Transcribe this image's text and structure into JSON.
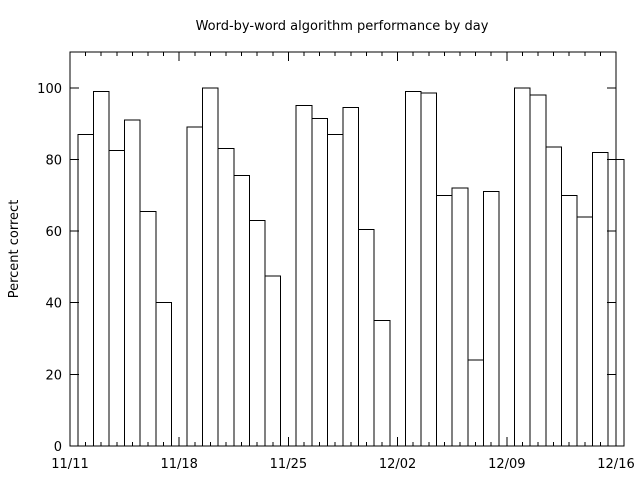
{
  "chart_data": {
    "type": "bar",
    "title": "Word-by-word algorithm performance by day",
    "xlabel": "",
    "ylabel": "Percent correct",
    "ylim": [
      0,
      110
    ],
    "xlim": [
      "11/11",
      "12/16"
    ],
    "grid": false,
    "y_ticks": [
      0,
      20,
      40,
      60,
      80,
      100
    ],
    "x_tick_labels": [
      "11/11",
      "11/18",
      "11/25",
      "12/02",
      "12/09",
      "12/16"
    ],
    "categories": [
      "11/12",
      "11/13",
      "11/14",
      "11/15",
      "11/16",
      "11/17",
      "11/18",
      "11/19",
      "11/20",
      "11/21",
      "11/22",
      "11/23",
      "11/24",
      "11/25",
      "11/26",
      "11/27",
      "11/28",
      "11/29",
      "11/30",
      "12/01",
      "12/02",
      "12/03",
      "12/04",
      "12/05",
      "12/06",
      "12/07",
      "12/08",
      "12/09",
      "12/10",
      "12/11",
      "12/12",
      "12/13",
      "12/14",
      "12/15",
      "12/16"
    ],
    "values": [
      87,
      99,
      82.5,
      91,
      65.5,
      40,
      null,
      89,
      100,
      83,
      75.5,
      63,
      47.5,
      null,
      95,
      91.5,
      87,
      94.5,
      60.5,
      35,
      null,
      99,
      98.5,
      70,
      72,
      24,
      71,
      null,
      100,
      98,
      83.5,
      70,
      64,
      82,
      80
    ]
  }
}
